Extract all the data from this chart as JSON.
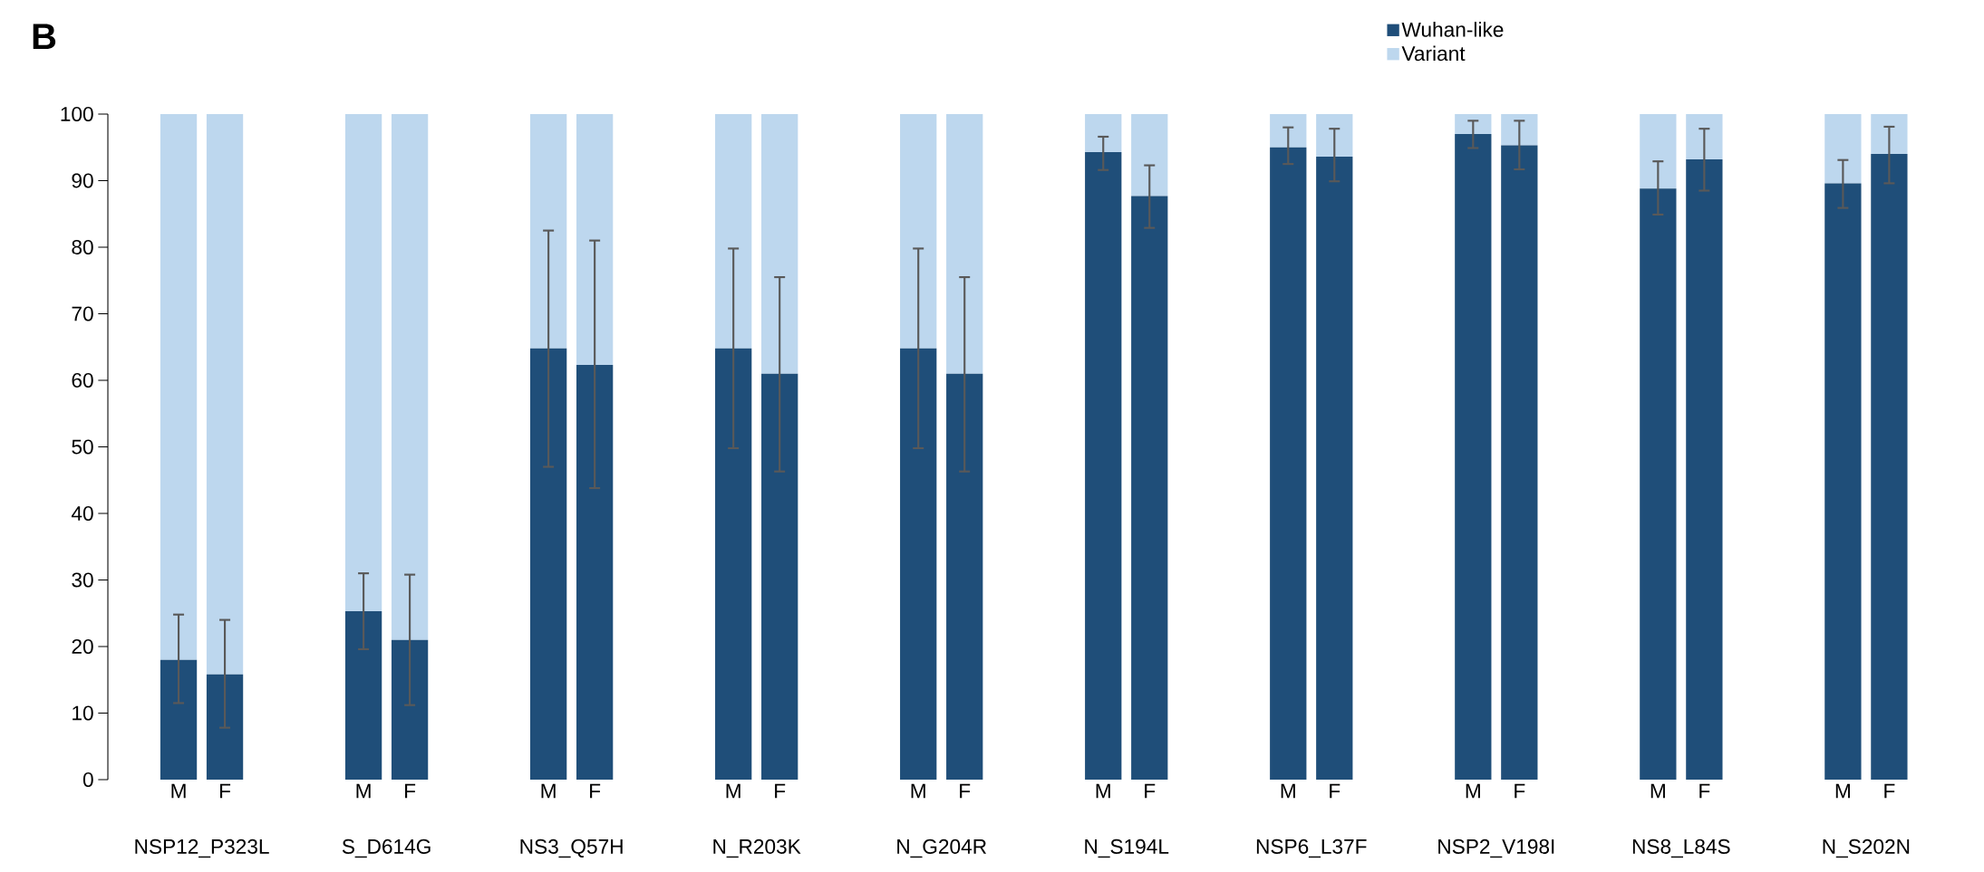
{
  "chart_data": {
    "type": "bar",
    "title": "B",
    "categories": [
      "M",
      "F",
      "M",
      "F",
      "M",
      "F",
      "M",
      "F",
      "M",
      "F",
      "M",
      "F",
      "M",
      "F",
      "M",
      "F",
      "M",
      "F",
      "M",
      "F"
    ],
    "annotations": [
      "NSP12_P323L",
      "S_D614G",
      "NS3_Q57H",
      "N_R203K",
      "N_G204R",
      "N_S194L",
      "NSP6_L37F",
      "NSP2_V198I",
      "NS8_L84S",
      "N_S202N"
    ],
    "stacked": true,
    "series": [
      {
        "name": "Wuhan-like",
        "color": "#1f4e79",
        "values": [
          18,
          15.8,
          25.3,
          21,
          64.8,
          62.3,
          64.8,
          61,
          64.8,
          61,
          94.3,
          87.7,
          95,
          93.6,
          97,
          95.3,
          88.8,
          93.2,
          89.6,
          94
        ],
        "errors": [
          [
            11.5,
            24.8
          ],
          [
            7.8,
            24
          ],
          [
            19.6,
            31
          ],
          [
            11.2,
            30.8
          ],
          [
            47,
            82.5
          ],
          [
            43.8,
            81
          ],
          [
            49.8,
            79.8
          ],
          [
            46.3,
            75.5
          ],
          [
            49.8,
            79.8
          ],
          [
            46.3,
            75.5
          ],
          [
            91.6,
            96.6
          ],
          [
            82.9,
            92.3
          ],
          [
            92.5,
            98
          ],
          [
            89.9,
            97.8
          ],
          [
            94.9,
            99
          ],
          [
            91.7,
            99
          ],
          [
            84.9,
            92.9
          ],
          [
            88.5,
            97.8
          ],
          [
            85.9,
            93.1
          ],
          [
            89.6,
            98.1
          ]
        ]
      },
      {
        "name": "Variant",
        "color": "#bdd7ee",
        "values": [
          82,
          84.2,
          74.7,
          79,
          35.2,
          37.7,
          35.2,
          39,
          35.2,
          39,
          5.7,
          12.3,
          5,
          6.4,
          3,
          4.7,
          11.2,
          6.8,
          10.4,
          6
        ]
      }
    ],
    "ylim": [
      0,
      100
    ],
    "yticks": [
      0,
      10,
      20,
      30,
      40,
      50,
      60,
      70,
      80,
      90,
      100
    ],
    "grid": false,
    "legend": "top"
  }
}
